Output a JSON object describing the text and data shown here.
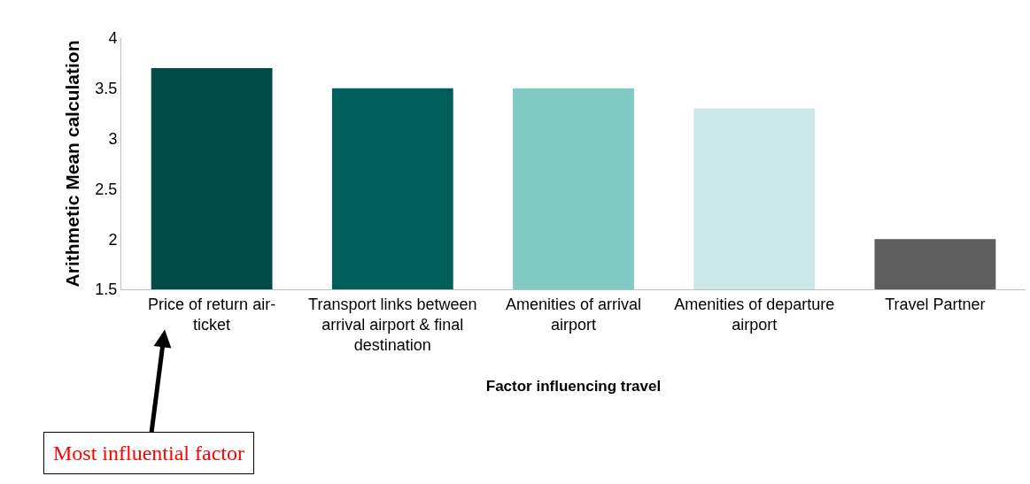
{
  "chart_data": {
    "type": "bar",
    "xlabel": "Factor influencing travel",
    "ylabel": "Arithmetic Mean calculation",
    "categories": [
      "Price of return air-ticket",
      "Transport links between arrival airport & final destination",
      "Amenities of arrival airport",
      "Amenities of departure airport",
      "Travel Partner"
    ],
    "values": [
      3.7,
      3.5,
      3.5,
      3.3,
      2.0
    ],
    "colors": [
      "#004a4a",
      "#005e5b",
      "#80cac4",
      "#cde8e8",
      "#5e5e5e"
    ],
    "ylim": [
      1.5,
      4
    ],
    "yticks": [
      1.5,
      2,
      2.5,
      3,
      3.5,
      4
    ],
    "annotations": [
      "Most influential factor"
    ]
  }
}
